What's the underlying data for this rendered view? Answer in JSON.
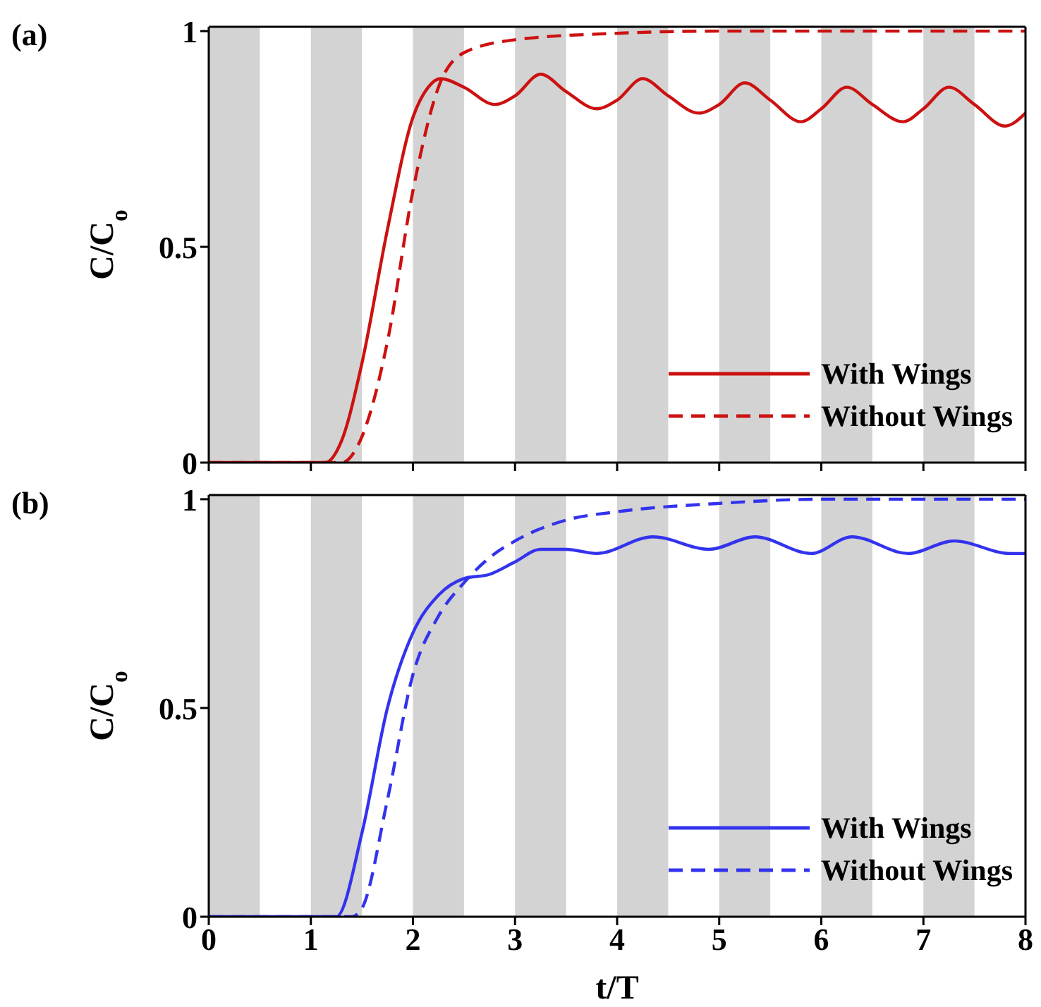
{
  "chart_data": [
    {
      "type": "line",
      "annotations": [
        "(a)"
      ],
      "ylabel": "C/C$_{o}$",
      "xlim": [
        0,
        8
      ],
      "xticks": [
        0,
        1,
        2,
        3,
        4,
        5,
        6,
        7,
        8
      ],
      "ylim": [
        0,
        1.01
      ],
      "yticks": [
        0,
        0.5,
        1
      ],
      "tick_labels": "y",
      "legend": "bottom right",
      "marker": "none",
      "bands": [
        {
          "axis": "x",
          "from": 0,
          "to": 0.5,
          "color": "#d3d3d3"
        },
        {
          "axis": "x",
          "from": 1,
          "to": 1.5,
          "color": "#d3d3d3"
        },
        {
          "axis": "x",
          "from": 2,
          "to": 2.5,
          "color": "#d3d3d3"
        },
        {
          "axis": "x",
          "from": 3,
          "to": 3.5,
          "color": "#d3d3d3"
        },
        {
          "axis": "x",
          "from": 4,
          "to": 4.5,
          "color": "#d3d3d3"
        },
        {
          "axis": "x",
          "from": 5,
          "to": 5.5,
          "color": "#d3d3d3"
        },
        {
          "axis": "x",
          "from": 6,
          "to": 6.5,
          "color": "#d3d3d3"
        },
        {
          "axis": "x",
          "from": 7,
          "to": 7.5,
          "color": "#d3d3d3"
        }
      ],
      "series": [
        {
          "name": "With Wings",
          "color": "#cc1111",
          "line_style": "solid",
          "x": [
            0,
            1.0,
            1.14,
            1.3,
            1.5,
            1.75,
            2.0,
            2.15,
            2.27,
            2.5,
            2.8,
            3.0,
            3.25,
            3.5,
            3.8,
            4.0,
            4.25,
            4.5,
            4.8,
            5.0,
            5.25,
            5.5,
            5.8,
            6.0,
            6.25,
            6.5,
            6.8,
            7.0,
            7.25,
            7.5,
            7.8,
            8.0
          ],
          "values": [
            0,
            0,
            0,
            0.05,
            0.23,
            0.54,
            0.8,
            0.87,
            0.89,
            0.87,
            0.83,
            0.85,
            0.9,
            0.86,
            0.82,
            0.84,
            0.89,
            0.85,
            0.81,
            0.83,
            0.88,
            0.84,
            0.79,
            0.82,
            0.87,
            0.83,
            0.79,
            0.82,
            0.87,
            0.83,
            0.78,
            0.81
          ]
        },
        {
          "name": "Without Wings",
          "color": "#cc1111",
          "line_style": "dashed",
          "x": [
            0,
            1.0,
            1.3,
            1.5,
            1.75,
            2.0,
            2.25,
            2.5,
            3.0,
            4.0,
            5.0,
            6.0,
            7.0,
            8.0
          ],
          "values": [
            0,
            0,
            0,
            0.06,
            0.28,
            0.63,
            0.87,
            0.95,
            0.98,
            0.995,
            1,
            1,
            1,
            1
          ]
        }
      ]
    },
    {
      "type": "line",
      "annotations": [
        "(b)"
      ],
      "xlabel": "t/T",
      "ylabel": "C/C$_{o}$",
      "xlim": [
        0,
        8
      ],
      "xticks": [
        0,
        1,
        2,
        3,
        4,
        5,
        6,
        7,
        8
      ],
      "ylim": [
        0,
        1.01
      ],
      "yticks": [
        0,
        0.5,
        1
      ],
      "legend": "bottom right",
      "marker": "none",
      "bands": [
        {
          "axis": "x",
          "from": 0,
          "to": 0.5,
          "color": "#d3d3d3"
        },
        {
          "axis": "x",
          "from": 1,
          "to": 1.5,
          "color": "#d3d3d3"
        },
        {
          "axis": "x",
          "from": 2,
          "to": 2.5,
          "color": "#d3d3d3"
        },
        {
          "axis": "x",
          "from": 3,
          "to": 3.5,
          "color": "#d3d3d3"
        },
        {
          "axis": "x",
          "from": 4,
          "to": 4.5,
          "color": "#d3d3d3"
        },
        {
          "axis": "x",
          "from": 5,
          "to": 5.5,
          "color": "#d3d3d3"
        },
        {
          "axis": "x",
          "from": 6,
          "to": 6.5,
          "color": "#d3d3d3"
        },
        {
          "axis": "x",
          "from": 7,
          "to": 7.5,
          "color": "#d3d3d3"
        }
      ],
      "series": [
        {
          "name": "With Wings",
          "color": "#3333ee",
          "line_style": "solid",
          "x": [
            0,
            1.0,
            1.25,
            1.5,
            1.75,
            2.0,
            2.25,
            2.5,
            2.75,
            3.0,
            3.25,
            3.5,
            3.8,
            4.35,
            4.9,
            5.35,
            5.9,
            6.3,
            6.85,
            7.3,
            7.85,
            8.0
          ],
          "values": [
            0,
            0,
            0,
            0.2,
            0.5,
            0.68,
            0.77,
            0.81,
            0.82,
            0.85,
            0.88,
            0.88,
            0.87,
            0.91,
            0.88,
            0.91,
            0.87,
            0.91,
            0.87,
            0.9,
            0.87,
            0.87
          ]
        },
        {
          "name": "Without Wings",
          "color": "#3333ee",
          "line_style": "dashed",
          "x": [
            0,
            1.0,
            1.4,
            1.5,
            1.75,
            2.0,
            2.25,
            2.5,
            2.75,
            3.0,
            3.5,
            4.0,
            5.0,
            6.0,
            7.0,
            8.0
          ],
          "values": [
            0,
            0,
            0,
            0.02,
            0.28,
            0.58,
            0.72,
            0.8,
            0.86,
            0.9,
            0.95,
            0.97,
            0.99,
            1,
            1,
            1
          ]
        }
      ]
    }
  ]
}
